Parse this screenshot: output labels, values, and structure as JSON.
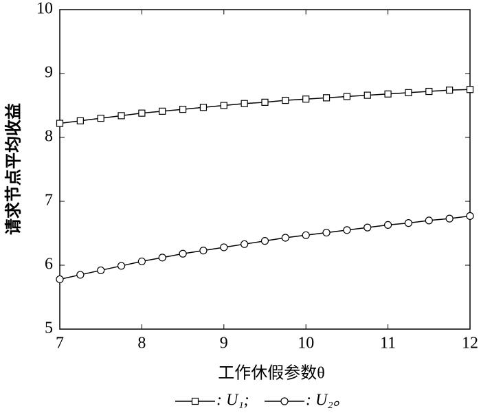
{
  "chart_data": {
    "type": "line",
    "x_label": "工作休假参数θ",
    "y_label": "请求节点平均收益",
    "x": [
      7,
      7.25,
      7.5,
      7.75,
      8,
      8.25,
      8.5,
      8.75,
      9,
      9.25,
      9.5,
      9.75,
      10,
      10.25,
      10.5,
      10.75,
      11,
      11.25,
      11.5,
      11.75,
      12
    ],
    "series": [
      {
        "name": ": U₁;",
        "color": "#000000",
        "marker": "square",
        "values": [
          8.22,
          8.26,
          8.3,
          8.34,
          8.38,
          8.41,
          8.44,
          8.47,
          8.5,
          8.53,
          8.55,
          8.58,
          8.6,
          8.62,
          8.64,
          8.66,
          8.68,
          8.7,
          8.72,
          8.74,
          8.75
        ]
      },
      {
        "name": ": U₂。",
        "color": "#000000",
        "marker": "circle",
        "values": [
          5.78,
          5.85,
          5.92,
          5.99,
          6.06,
          6.12,
          6.18,
          6.23,
          6.28,
          6.33,
          6.38,
          6.43,
          6.47,
          6.51,
          6.55,
          6.59,
          6.63,
          6.66,
          6.7,
          6.73,
          6.77
        ]
      }
    ],
    "xlim": [
      7,
      12
    ],
    "xticks": [
      7,
      8,
      9,
      10,
      11,
      12
    ],
    "ylim": [
      5,
      10
    ],
    "yticks": [
      5,
      6,
      7,
      8,
      9,
      10
    ],
    "grid": false
  }
}
